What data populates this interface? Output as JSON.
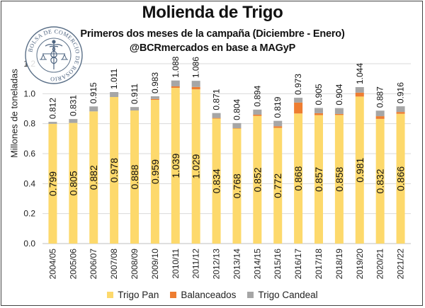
{
  "header": {
    "title": "Molienda de Trigo",
    "subtitle": "Primeros dos meses de la campaña (Diciembre - Enero)",
    "source": "@BCRmercados en base a MAGyP"
  },
  "logo": {
    "text": "BOLSA DE COMERCIO DE ROSARIO",
    "icon": "caduceus-scales-emblem"
  },
  "colors": {
    "trigo_pan": "#FDD96C",
    "balanceados": "#EE7D31",
    "trigo_candeal": "#A6A6A6",
    "grid": "#d9d9d9",
    "axis": "#bfbfbf"
  },
  "chart_data": {
    "type": "bar",
    "stacked": true,
    "title": "Molienda de Trigo",
    "subtitle": "Primeros dos meses de la campaña (Diciembre - Enero)",
    "xlabel": "",
    "ylabel": "Millones de toneladas",
    "ylim": [
      0,
      1.2
    ],
    "yticks": [
      "0.0",
      "0.2",
      "0.4",
      "0.6",
      "0.8",
      "1.0",
      "1.2"
    ],
    "grid": true,
    "legend_position": "bottom",
    "categories": [
      "2004/05",
      "2005/06",
      "2006/07",
      "2007/08",
      "2008/09",
      "2009/10",
      "2010/11",
      "2011/12",
      "2012/13",
      "2013/14",
      "2014/15",
      "2015/16",
      "2016/17",
      "2017/18",
      "2018/19",
      "2019/20",
      "2020/21",
      "2021/22"
    ],
    "series": [
      {
        "name": "Trigo Pan",
        "color": "#FDD96C",
        "values": [
          0.799,
          0.805,
          0.882,
          0.978,
          0.888,
          0.959,
          1.039,
          1.029,
          0.834,
          0.768,
          0.852,
          0.772,
          0.868,
          0.857,
          0.858,
          0.981,
          0.832,
          0.866
        ],
        "labels": [
          "0.799",
          "0.805",
          "0.882",
          "0.978",
          "0.888",
          "0.959",
          "1.039",
          "1.029",
          "0.834",
          "0.768",
          "0.852",
          "0.772",
          "0.868",
          "0.857",
          "0.858",
          "0.981",
          "0.832",
          "0.866"
        ]
      },
      {
        "name": "Balanceados",
        "color": "#EE7D31",
        "values": [
          0.0,
          0.0,
          0.0,
          0.0,
          0.0,
          0.006,
          0.01,
          0.016,
          0.004,
          0.002,
          0.008,
          0.011,
          0.073,
          0.013,
          0.007,
          0.026,
          0.018,
          0.012
        ]
      },
      {
        "name": "Trigo Candeal",
        "color": "#A6A6A6",
        "values": [
          0.013,
          0.026,
          0.033,
          0.033,
          0.023,
          0.018,
          0.039,
          0.041,
          0.033,
          0.034,
          0.034,
          0.036,
          0.032,
          0.035,
          0.039,
          0.037,
          0.037,
          0.038
        ]
      }
    ],
    "totals": [
      "0.812",
      "0.831",
      "0.915",
      "1.011",
      "0.911",
      "0.983",
      "1.088",
      "1.086",
      "0.871",
      "0.804",
      "0.894",
      "0.819",
      "0.973",
      "0.905",
      "0.904",
      "1.044",
      "0.887",
      "0.916"
    ]
  }
}
